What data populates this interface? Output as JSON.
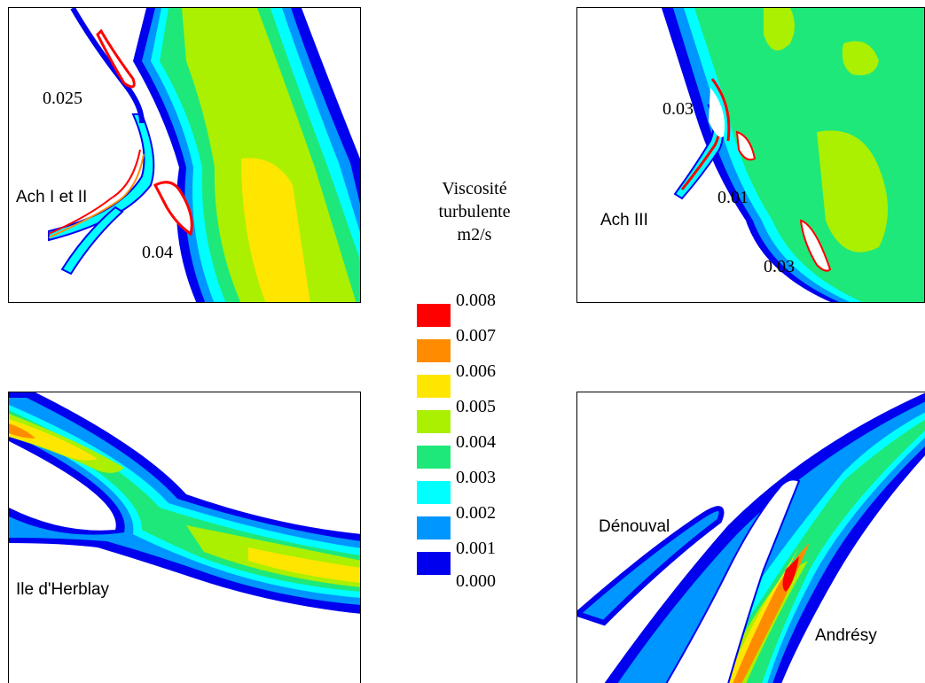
{
  "legend": {
    "title_lines": [
      "Viscosité",
      "turbulente",
      "m2/s"
    ],
    "ticks": [
      "0.008",
      "0.007",
      "0.006",
      "0.005",
      "0.004",
      "0.003",
      "0.002",
      "0.001",
      "0.000"
    ],
    "colors": [
      "#ff0000",
      "#ff8c00",
      "#ffe600",
      "#aaf000",
      "#1ee87a",
      "#00ffff",
      "#0096ff",
      "#0000ee"
    ]
  },
  "panels": {
    "top_left": {
      "labels": [
        "0.025",
        "Ach I et II",
        "0.04"
      ]
    },
    "top_right": {
      "labels": [
        "0.03",
        "0.01",
        "Ach III",
        "0.03"
      ]
    },
    "bottom_left": {
      "labels": [
        "Ile d'Herblay"
      ]
    },
    "bottom_right": {
      "labels": [
        "Dénouval",
        "Andrésy"
      ]
    }
  }
}
